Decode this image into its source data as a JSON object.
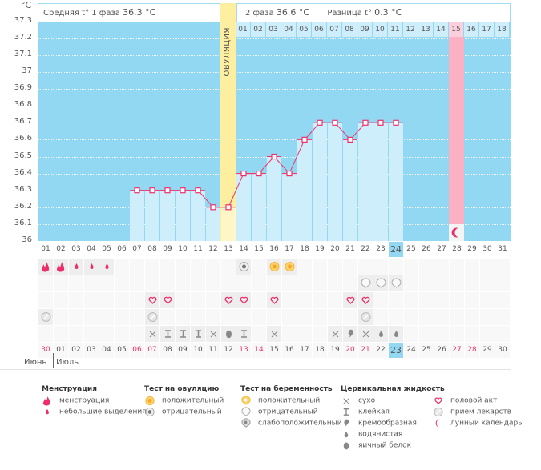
{
  "header": {
    "phase1_label": "Средняя t° 1 фаза",
    "phase1_value": "36.3 °C",
    "phase2_label": "2 фаза",
    "phase2_value": "36.6 °C",
    "diff_label": "Разница t°",
    "diff_value": "0.3 °C",
    "unit": "°C",
    "ovulation_label": "ОВУЛЯЦИЯ"
  },
  "colors": {
    "plot_bg": "#93d8f2",
    "bar": "#cdeefa",
    "line": "#f0306a",
    "ovulation": "#fdeea0",
    "coverline": "#fdf0a0",
    "cycle_end": "#fbb0c4",
    "weekend": "#f0306a"
  },
  "chart_data": {
    "type": "bar",
    "ylabel": "°C",
    "ylim": [
      36,
      37.3
    ],
    "yticks": [
      "37.3",
      "37.2",
      "37.1",
      "37",
      "36.9",
      "36.8",
      "36.7",
      "36.6",
      "36.5",
      "36.4",
      "36.3",
      "36.2",
      "36.1",
      "36"
    ],
    "grid": true,
    "coverline": 36.3,
    "cycle_days": [
      "01",
      "02",
      "03",
      "04",
      "05",
      "06",
      "07",
      "08",
      "09",
      "10",
      "11",
      "12",
      "13",
      "14",
      "15",
      "16",
      "17",
      "18",
      "19",
      "20",
      "21",
      "22",
      "23",
      "24",
      "25",
      "26",
      "27",
      "28",
      "29",
      "30",
      "31"
    ],
    "current_cycle_day": "24",
    "temperatures": [
      null,
      null,
      null,
      null,
      null,
      null,
      36.3,
      36.3,
      36.3,
      36.3,
      36.3,
      36.2,
      36.2,
      36.4,
      36.4,
      36.5,
      36.4,
      36.6,
      36.7,
      36.7,
      36.6,
      36.7,
      36.7,
      36.7,
      null,
      null,
      null,
      null,
      null,
      null,
      null
    ],
    "ovulation_day": "13",
    "phase2_days": [
      "01",
      "02",
      "03",
      "04",
      "05",
      "06",
      "07",
      "08",
      "09",
      "10",
      "11",
      "12",
      "13",
      "14",
      "15",
      "16",
      "17",
      "18"
    ],
    "phase2_highlight": "15",
    "moon_day": "28"
  },
  "calendar": {
    "dates": [
      "30",
      "01",
      "02",
      "03",
      "04",
      "05",
      "06",
      "07",
      "08",
      "09",
      "10",
      "11",
      "12",
      "13",
      "14",
      "15",
      "16",
      "17",
      "18",
      "19",
      "20",
      "21",
      "22",
      "23",
      "24",
      "25",
      "26",
      "27",
      "28",
      "29",
      "30"
    ],
    "weekend_flags": [
      1,
      0,
      0,
      0,
      0,
      0,
      1,
      1,
      0,
      0,
      0,
      0,
      0,
      1,
      1,
      0,
      0,
      0,
      0,
      0,
      1,
      1,
      0,
      0,
      0,
      0,
      0,
      1,
      1,
      0,
      0
    ],
    "today": "23",
    "month_prev": "Июнь",
    "month_next": "Июль"
  },
  "rows": {
    "menstruation": [
      "menstruation",
      "menstruation",
      "spotting",
      "spotting",
      "spotting",
      null,
      null,
      null,
      null,
      null,
      null,
      null,
      null,
      "ovulation-negative",
      null,
      "ovulation-positive",
      "ovulation-positive",
      null,
      null,
      null,
      null,
      null,
      null,
      null,
      null,
      null,
      null,
      null,
      null,
      null,
      null
    ],
    "pregnancy": [
      null,
      null,
      null,
      null,
      null,
      null,
      null,
      null,
      null,
      null,
      null,
      null,
      null,
      null,
      null,
      null,
      null,
      null,
      null,
      null,
      null,
      "pregnancy-negative",
      "pregnancy-negative",
      "pregnancy-negative",
      null,
      null,
      null,
      null,
      null,
      null,
      null
    ],
    "intercourse": [
      null,
      null,
      null,
      null,
      null,
      null,
      null,
      "heart",
      "heart",
      null,
      null,
      null,
      "heart",
      "heart",
      null,
      "heart",
      null,
      null,
      null,
      null,
      "heart",
      "heart",
      null,
      null,
      null,
      null,
      null,
      null,
      null,
      null,
      null
    ],
    "medication": [
      "pill",
      null,
      null,
      null,
      null,
      null,
      null,
      "pill",
      null,
      null,
      null,
      null,
      null,
      null,
      null,
      null,
      null,
      null,
      null,
      null,
      null,
      "pill",
      null,
      null,
      null,
      null,
      null,
      null,
      null,
      null,
      null
    ],
    "fluid": [
      null,
      null,
      null,
      null,
      null,
      null,
      null,
      "dry",
      "sticky",
      "sticky",
      "sticky",
      "dry",
      "eggwhite",
      "sticky",
      null,
      "dry",
      null,
      null,
      null,
      "dry",
      "creamy",
      "dry",
      "watery",
      "watery",
      null,
      null,
      null,
      null,
      null,
      null,
      null
    ]
  },
  "legend": {
    "menstruation": {
      "title": "Менструация",
      "items": [
        {
          "icon": "menstruation",
          "label": "менструация"
        },
        {
          "icon": "spotting",
          "label": "небольшие выделения"
        }
      ]
    },
    "ovulation_test": {
      "title": "Тест на овуляцию",
      "items": [
        {
          "icon": "ovulation-positive",
          "label": "положительный"
        },
        {
          "icon": "ovulation-negative",
          "label": "отрицательный"
        }
      ]
    },
    "pregnancy_test": {
      "title": "Тест на беременность",
      "items": [
        {
          "icon": "pregnancy-positive",
          "label": "положительный"
        },
        {
          "icon": "pregnancy-negative",
          "label": "отрицательный"
        },
        {
          "icon": "pregnancy-weak",
          "label": "слабоположительный"
        }
      ]
    },
    "cervical_fluid": {
      "title": "Цервикальная жидкость",
      "items": [
        {
          "icon": "dry",
          "label": "сухо"
        },
        {
          "icon": "sticky",
          "label": "клейкая"
        },
        {
          "icon": "creamy",
          "label": "кремообразная"
        },
        {
          "icon": "watery",
          "label": "водянистая"
        },
        {
          "icon": "eggwhite",
          "label": "яичный белок"
        }
      ]
    },
    "other": {
      "items": [
        {
          "icon": "heart",
          "label": "половой акт"
        },
        {
          "icon": "pill",
          "label": "прием лекарств"
        },
        {
          "icon": "moon",
          "label": "лунный календарь"
        }
      ]
    }
  }
}
